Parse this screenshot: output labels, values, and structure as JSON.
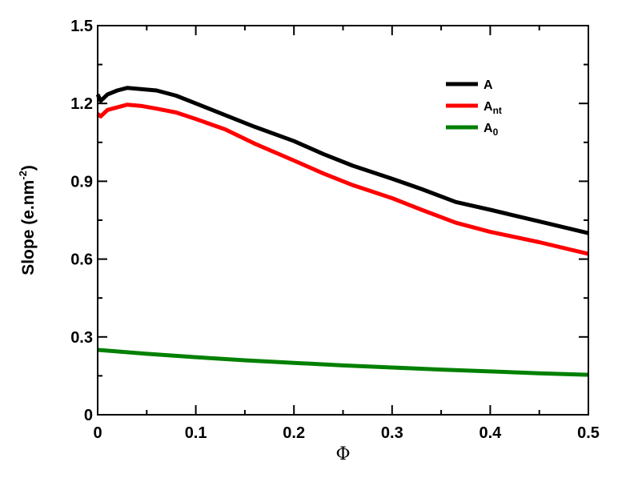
{
  "chart_data": {
    "type": "line",
    "title": "",
    "xlabel": "Φ",
    "ylabel": "Slope (e.nm",
    "ylabel_sup": "-2",
    "ylabel_tail": ")",
    "xlim": [
      0,
      0.5
    ],
    "ylim": [
      0,
      1.5
    ],
    "x_ticks": [
      0,
      0.1,
      0.2,
      0.3,
      0.4,
      0.5
    ],
    "x_tick_labels": [
      "0",
      "0.1",
      "0.2",
      "0.3",
      "0.4",
      "0.5"
    ],
    "y_ticks": [
      0,
      0.3,
      0.6,
      0.9,
      1.2,
      1.5
    ],
    "y_tick_labels": [
      "0",
      "0.3",
      "0.6",
      "0.9",
      "1.2",
      "1.5"
    ],
    "grid": false,
    "legend_position": "top-right",
    "series": [
      {
        "name": "A",
        "name_sub": "",
        "color": "#000000",
        "x": [
          0,
          0.003,
          0.01,
          0.02,
          0.03,
          0.045,
          0.06,
          0.08,
          0.1,
          0.13,
          0.16,
          0.2,
          0.23,
          0.26,
          0.3,
          0.33,
          0.365,
          0.4,
          0.45,
          0.5
        ],
        "y": [
          1.235,
          1.21,
          1.235,
          1.25,
          1.26,
          1.255,
          1.25,
          1.23,
          1.2,
          1.155,
          1.11,
          1.055,
          1.005,
          0.96,
          0.91,
          0.87,
          0.82,
          0.79,
          0.745,
          0.7
        ]
      },
      {
        "name": "A",
        "name_sub": "nt",
        "color": "#ff0000",
        "x": [
          0,
          0.003,
          0.01,
          0.02,
          0.03,
          0.045,
          0.06,
          0.08,
          0.1,
          0.13,
          0.16,
          0.2,
          0.23,
          0.26,
          0.3,
          0.33,
          0.365,
          0.4,
          0.45,
          0.5
        ],
        "y": [
          1.16,
          1.15,
          1.175,
          1.185,
          1.195,
          1.19,
          1.18,
          1.165,
          1.14,
          1.1,
          1.045,
          0.98,
          0.93,
          0.885,
          0.835,
          0.79,
          0.74,
          0.705,
          0.665,
          0.62
        ]
      },
      {
        "name": "A",
        "name_sub": "0",
        "color": "#008000",
        "x": [
          0,
          0.05,
          0.1,
          0.15,
          0.2,
          0.25,
          0.3,
          0.35,
          0.4,
          0.45,
          0.5
        ],
        "y": [
          0.25,
          0.235,
          0.222,
          0.21,
          0.2,
          0.19,
          0.182,
          0.174,
          0.167,
          0.16,
          0.154
        ]
      }
    ]
  }
}
